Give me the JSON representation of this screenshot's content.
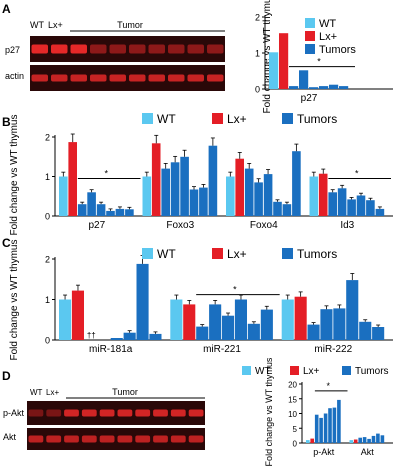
{
  "colors": {
    "wt": "#5bc8f0",
    "lx": "#e41e26",
    "tumor": "#1a6fc0",
    "gel_background": "#2a0808",
    "gel_band": "#ef2a2a"
  },
  "panels": {
    "A": {
      "letter": "A",
      "blot": {
        "wt_label": "WT",
        "lx_label": "Lx+",
        "tumor_label": "Tumor",
        "rows": [
          "p27",
          "actin"
        ]
      }
    },
    "B": {
      "letter": "B"
    },
    "C": {
      "letter": "C"
    },
    "D": {
      "letter": "D",
      "blot": {
        "wt_label": "WT",
        "lx_label": "Lx+",
        "tumor_label": "Tumor",
        "rows": [
          "p-Akt",
          "Akt"
        ]
      }
    }
  },
  "chart_data": [
    {
      "id": "A",
      "type": "bar",
      "ylabel": "Fold change vs WT thymus",
      "ylim": [
        0,
        2
      ],
      "yticks": [
        "0",
        "1",
        "2"
      ],
      "legend": [
        "WT",
        "Lx+",
        "Tumors"
      ],
      "legend_placement": "top-right",
      "groups": [
        {
          "label": "p27",
          "wt": 1.02,
          "lx": 1.55,
          "tumors": [
            0.08,
            0.52,
            0.05,
            0.08,
            0.12,
            0.08
          ],
          "sig_label": "*"
        }
      ]
    },
    {
      "id": "B",
      "type": "bar",
      "ylabel": "Fold change vs WT thymus",
      "ylim": [
        0,
        2
      ],
      "yticks": [
        "0",
        "1",
        "2"
      ],
      "legend": [
        "WT",
        "Lx+",
        "Tumors"
      ],
      "legend_placement": "top",
      "groups": [
        {
          "label": "p27",
          "wt": 1.0,
          "lx": 1.87,
          "tumors": [
            0.3,
            0.6,
            0.3,
            0.13,
            0.18,
            0.17
          ],
          "sig_label": "*"
        },
        {
          "label": "Foxo3",
          "wt": 1.0,
          "lx": 1.84,
          "tumors": [
            1.2,
            1.36,
            1.5,
            0.67,
            0.72,
            1.78
          ]
        },
        {
          "label": "Foxo4",
          "wt": 1.0,
          "lx": 1.45,
          "tumors": [
            1.2,
            0.85,
            1.06,
            0.36,
            0.3,
            1.64
          ]
        },
        {
          "label": "Id3",
          "wt": 1.0,
          "lx": 1.07,
          "tumors": [
            0.6,
            0.7,
            0.42,
            0.52,
            0.4,
            0.18
          ],
          "sig_label": "*"
        }
      ]
    },
    {
      "id": "C",
      "type": "bar",
      "ylabel": "Fold change vs WT thymus",
      "ylim": [
        0,
        2
      ],
      "yticks": [
        "0",
        "1",
        "2"
      ],
      "legend": [
        "WT",
        "Lx+",
        "Tumors"
      ],
      "legend_placement": "top",
      "groups": [
        {
          "label": "miR-181a",
          "wt": 1.0,
          "lx": 1.22,
          "tumors": [
            0.0,
            0.0,
            0.05,
            0.18,
            1.88,
            0.15
          ],
          "annotation": "††"
        },
        {
          "label": "miR-221",
          "wt": 1.0,
          "lx": 0.88,
          "tumors": [
            0.33,
            0.88,
            0.6,
            1.0,
            0.4,
            0.75
          ],
          "sig_label": "*"
        },
        {
          "label": "miR-222",
          "wt": 1.0,
          "lx": 1.07,
          "tumors": [
            0.38,
            0.76,
            0.78,
            1.48,
            0.45,
            0.32
          ]
        }
      ]
    },
    {
      "id": "D",
      "type": "bar",
      "ylabel": "Fold change vs WT thymus",
      "ylim": [
        0,
        20
      ],
      "yticks": [
        "0",
        "5",
        "10",
        "15",
        "20"
      ],
      "legend": [
        "WT",
        "Lx+",
        "Tumors"
      ],
      "legend_placement": "top",
      "groups": [
        {
          "label": "p-Akt",
          "wt": 1.0,
          "lx": 1.5,
          "tumors": [
            9.6,
            8.5,
            10.0,
            11.8,
            12.0,
            14.6
          ],
          "sig_label": "*"
        },
        {
          "label": "Akt",
          "wt": 1.0,
          "lx": 1.2,
          "tumors": [
            1.8,
            2.0,
            1.4,
            2.4,
            3.2,
            2.6
          ]
        }
      ]
    }
  ]
}
